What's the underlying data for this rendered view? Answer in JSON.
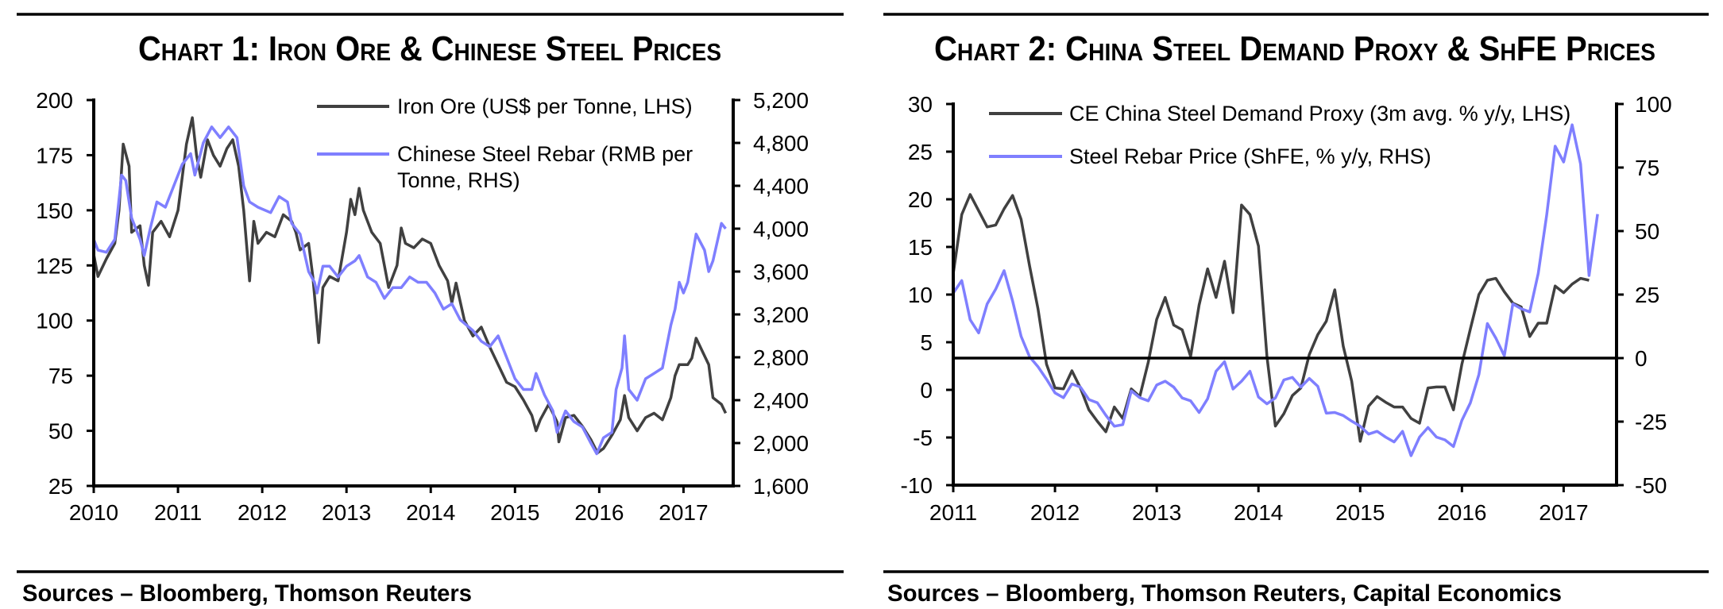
{
  "chart_data": [
    {
      "type": "line",
      "title": "Chart 1: Iron Ore & Chinese Steel Prices",
      "source": "Sources – Bloomberg, Thomson Reuters",
      "xlim": [
        2010,
        2017.59
      ],
      "x_ticks": [
        2010,
        2011,
        2012,
        2013,
        2014,
        2015,
        2016,
        2017
      ],
      "x_tick_labels": [
        "2010",
        "2011",
        "2012",
        "2013",
        "2014",
        "2015",
        "2016",
        "2017"
      ],
      "y_left": {
        "lim": [
          25,
          200
        ],
        "ticks": [
          25,
          50,
          75,
          100,
          125,
          150,
          175,
          200
        ],
        "labels": [
          "25",
          "50",
          "75",
          "100",
          "125",
          "150",
          "175",
          "200"
        ]
      },
      "y_right": {
        "lim": [
          1600,
          5200
        ],
        "ticks": [
          1600,
          2000,
          2400,
          2800,
          3200,
          3600,
          4000,
          4400,
          4800,
          5200
        ],
        "labels": [
          "1,600",
          "2,000",
          "2,400",
          "2,800",
          "3,200",
          "3,600",
          "4,000",
          "4,400",
          "4,800",
          "5,200"
        ]
      },
      "grid": false,
      "legend_position": "top-right",
      "series": [
        {
          "name": "Iron Ore (US$ per Tonne, LHS)",
          "axis": "left",
          "color": "#404040",
          "points": [
            [
              2010.0,
              130
            ],
            [
              2010.05,
              120
            ],
            [
              2010.15,
              128
            ],
            [
              2010.25,
              135
            ],
            [
              2010.3,
              150
            ],
            [
              2010.35,
              180
            ],
            [
              2010.42,
              170
            ],
            [
              2010.45,
              140
            ],
            [
              2010.55,
              143
            ],
            [
              2010.6,
              125
            ],
            [
              2010.65,
              116
            ],
            [
              2010.7,
              140
            ],
            [
              2010.8,
              145
            ],
            [
              2010.9,
              138
            ],
            [
              2011.0,
              150
            ],
            [
              2011.05,
              165
            ],
            [
              2011.1,
              180
            ],
            [
              2011.17,
              192
            ],
            [
              2011.22,
              175
            ],
            [
              2011.27,
              165
            ],
            [
              2011.35,
              182
            ],
            [
              2011.42,
              175
            ],
            [
              2011.5,
              170
            ],
            [
              2011.58,
              178
            ],
            [
              2011.65,
              182
            ],
            [
              2011.72,
              170
            ],
            [
              2011.78,
              150
            ],
            [
              2011.85,
              118
            ],
            [
              2011.9,
              145
            ],
            [
              2011.95,
              135
            ],
            [
              2012.05,
              140
            ],
            [
              2012.15,
              138
            ],
            [
              2012.25,
              148
            ],
            [
              2012.35,
              145
            ],
            [
              2012.4,
              140
            ],
            [
              2012.45,
              132
            ],
            [
              2012.55,
              135
            ],
            [
              2012.6,
              120
            ],
            [
              2012.67,
              90
            ],
            [
              2012.72,
              115
            ],
            [
              2012.8,
              120
            ],
            [
              2012.9,
              118
            ],
            [
              2013.0,
              140
            ],
            [
              2013.05,
              155
            ],
            [
              2013.1,
              148
            ],
            [
              2013.15,
              160
            ],
            [
              2013.2,
              150
            ],
            [
              2013.3,
              140
            ],
            [
              2013.4,
              135
            ],
            [
              2013.5,
              115
            ],
            [
              2013.6,
              125
            ],
            [
              2013.65,
              142
            ],
            [
              2013.7,
              135
            ],
            [
              2013.8,
              133
            ],
            [
              2013.9,
              137
            ],
            [
              2014.0,
              135
            ],
            [
              2014.1,
              125
            ],
            [
              2014.2,
              118
            ],
            [
              2014.25,
              108
            ],
            [
              2014.3,
              117
            ],
            [
              2014.4,
              100
            ],
            [
              2014.5,
              93
            ],
            [
              2014.6,
              97
            ],
            [
              2014.7,
              88
            ],
            [
              2014.8,
              80
            ],
            [
              2014.9,
              72
            ],
            [
              2015.0,
              70
            ],
            [
              2015.1,
              64
            ],
            [
              2015.2,
              57
            ],
            [
              2015.25,
              50
            ],
            [
              2015.3,
              55
            ],
            [
              2015.4,
              62
            ],
            [
              2015.5,
              54
            ],
            [
              2015.52,
              45
            ],
            [
              2015.6,
              56
            ],
            [
              2015.7,
              57
            ],
            [
              2015.8,
              52
            ],
            [
              2015.9,
              46
            ],
            [
              2015.98,
              40
            ],
            [
              2016.05,
              42
            ],
            [
              2016.15,
              48
            ],
            [
              2016.25,
              55
            ],
            [
              2016.3,
              66
            ],
            [
              2016.35,
              56
            ],
            [
              2016.45,
              50
            ],
            [
              2016.55,
              56
            ],
            [
              2016.65,
              58
            ],
            [
              2016.75,
              55
            ],
            [
              2016.85,
              65
            ],
            [
              2016.9,
              75
            ],
            [
              2016.95,
              80
            ],
            [
              2017.05,
              80
            ],
            [
              2017.1,
              83
            ],
            [
              2017.15,
              92
            ],
            [
              2017.2,
              88
            ],
            [
              2017.3,
              80
            ],
            [
              2017.35,
              65
            ],
            [
              2017.45,
              62
            ],
            [
              2017.5,
              58
            ]
          ]
        },
        {
          "name": "Chinese Steel Rebar (RMB per Tonne, RHS)",
          "legend_lines": [
            "Chinese Steel Rebar (RMB per",
            "Tonne, RHS)"
          ],
          "axis": "right",
          "color": "#7f7fff",
          "points": [
            [
              2010.0,
              3900
            ],
            [
              2010.05,
              3800
            ],
            [
              2010.15,
              3780
            ],
            [
              2010.25,
              3900
            ],
            [
              2010.33,
              4500
            ],
            [
              2010.38,
              4450
            ],
            [
              2010.45,
              4100
            ],
            [
              2010.55,
              3900
            ],
            [
              2010.6,
              3750
            ],
            [
              2010.67,
              4000
            ],
            [
              2010.75,
              4250
            ],
            [
              2010.85,
              4200
            ],
            [
              2010.95,
              4400
            ],
            [
              2011.05,
              4600
            ],
            [
              2011.15,
              4700
            ],
            [
              2011.2,
              4500
            ],
            [
              2011.3,
              4800
            ],
            [
              2011.4,
              4950
            ],
            [
              2011.5,
              4850
            ],
            [
              2011.6,
              4950
            ],
            [
              2011.7,
              4850
            ],
            [
              2011.78,
              4400
            ],
            [
              2011.85,
              4250
            ],
            [
              2011.95,
              4200
            ],
            [
              2012.1,
              4150
            ],
            [
              2012.2,
              4300
            ],
            [
              2012.3,
              4250
            ],
            [
              2012.35,
              4050
            ],
            [
              2012.45,
              3950
            ],
            [
              2012.55,
              3600
            ],
            [
              2012.62,
              3500
            ],
            [
              2012.65,
              3400
            ],
            [
              2012.72,
              3650
            ],
            [
              2012.8,
              3650
            ],
            [
              2012.9,
              3550
            ],
            [
              2013.0,
              3650
            ],
            [
              2013.1,
              3700
            ],
            [
              2013.15,
              3750
            ],
            [
              2013.25,
              3550
            ],
            [
              2013.35,
              3500
            ],
            [
              2013.45,
              3350
            ],
            [
              2013.55,
              3450
            ],
            [
              2013.65,
              3450
            ],
            [
              2013.75,
              3550
            ],
            [
              2013.85,
              3500
            ],
            [
              2013.95,
              3500
            ],
            [
              2014.05,
              3400
            ],
            [
              2014.15,
              3250
            ],
            [
              2014.25,
              3300
            ],
            [
              2014.35,
              3150
            ],
            [
              2014.5,
              3050
            ],
            [
              2014.6,
              2950
            ],
            [
              2014.7,
              2900
            ],
            [
              2014.8,
              3000
            ],
            [
              2014.9,
              2800
            ],
            [
              2015.0,
              2600
            ],
            [
              2015.1,
              2500
            ],
            [
              2015.2,
              2500
            ],
            [
              2015.25,
              2650
            ],
            [
              2015.35,
              2450
            ],
            [
              2015.45,
              2300
            ],
            [
              2015.5,
              2100
            ],
            [
              2015.6,
              2300
            ],
            [
              2015.7,
              2200
            ],
            [
              2015.8,
              2150
            ],
            [
              2015.9,
              2000
            ],
            [
              2015.97,
              1900
            ],
            [
              2016.05,
              2050
            ],
            [
              2016.15,
              2100
            ],
            [
              2016.2,
              2500
            ],
            [
              2016.27,
              2700
            ],
            [
              2016.3,
              3000
            ],
            [
              2016.35,
              2500
            ],
            [
              2016.45,
              2400
            ],
            [
              2016.55,
              2600
            ],
            [
              2016.65,
              2650
            ],
            [
              2016.75,
              2700
            ],
            [
              2016.85,
              3100
            ],
            [
              2016.9,
              3250
            ],
            [
              2016.95,
              3500
            ],
            [
              2017.0,
              3400
            ],
            [
              2017.05,
              3500
            ],
            [
              2017.15,
              3950
            ],
            [
              2017.25,
              3800
            ],
            [
              2017.3,
              3600
            ],
            [
              2017.35,
              3700
            ],
            [
              2017.45,
              4050
            ],
            [
              2017.5,
              4000
            ]
          ]
        }
      ]
    },
    {
      "type": "line",
      "title": "Chart 2: China Steel Demand Proxy & ShFE Prices",
      "source": "Sources – Bloomberg, Thomson Reuters, Capital Economics",
      "xlim": [
        2011,
        2017.52
      ],
      "x_ticks": [
        2011,
        2012,
        2013,
        2014,
        2015,
        2016,
        2017
      ],
      "x_tick_labels": [
        "2011",
        "2012",
        "2013",
        "2014",
        "2015",
        "2016",
        "2017"
      ],
      "y_left": {
        "lim": [
          -10,
          30
        ],
        "ticks": [
          -10,
          -5,
          0,
          5,
          10,
          15,
          20,
          25,
          30
        ],
        "labels": [
          "-10",
          "-5",
          "0",
          "5",
          "10",
          "15",
          "20",
          "25",
          "30"
        ]
      },
      "y_right": {
        "lim": [
          -50,
          100
        ],
        "ticks": [
          -50,
          -25,
          0,
          25,
          50,
          75,
          100
        ],
        "labels": [
          "-50",
          "-25",
          "0",
          "25",
          "50",
          "75",
          "100"
        ]
      },
      "reference_line": {
        "axis": "right",
        "value": 0
      },
      "grid": false,
      "legend_position": "top",
      "x_start": 2011,
      "x_step_per_point": 0.0833333,
      "series": [
        {
          "name": "CE China Steel Demand Proxy (3m avg. % y/y, LHS)",
          "axis": "left",
          "color": "#404040",
          "values": [
            12.2,
            18.4,
            20.5,
            18.8,
            17.1,
            17.3,
            19.0,
            20.4,
            17.9,
            13.0,
            8.5,
            2.7,
            0.2,
            0.1,
            2.0,
            0.2,
            -2.1,
            -3.3,
            -4.4,
            -1.8,
            -3.0,
            0.1,
            -0.7,
            2.9,
            7.4,
            9.7,
            6.8,
            6.3,
            3.5,
            8.9,
            12.7,
            9.7,
            13.5,
            8.1,
            19.4,
            18.4,
            15.1,
            3.5,
            -3.8,
            -2.5,
            -0.6,
            0.2,
            3.7,
            5.8,
            7.2,
            10.5,
            4.6,
            0.9,
            -5.4,
            -1.7,
            -0.7,
            -1.3,
            -1.8,
            -1.8,
            -3.0,
            -3.5,
            0.2,
            0.3,
            0.3,
            -2.1,
            2.7,
            6.4,
            10.0,
            11.5,
            11.7,
            10.3,
            9.1,
            8.7,
            5.6,
            7.0,
            7.0,
            10.9,
            10.2,
            11.1,
            11.7,
            11.5
          ]
        },
        {
          "name": "Steel Rebar Price (ShFE, % y/y, RHS)",
          "axis": "right",
          "color": "#7f7fff",
          "values": [
            25.6,
            30.5,
            15.1,
            9.9,
            21.3,
            27.1,
            34.4,
            22.5,
            8.6,
            0.5,
            -3.4,
            -8.3,
            -13.7,
            -15.6,
            -10.2,
            -11.4,
            -16.3,
            -17.6,
            -22.5,
            -26.8,
            -26.2,
            -12.9,
            -15.6,
            -16.8,
            -10.6,
            -9.1,
            -11.4,
            -15.7,
            -16.8,
            -21.4,
            -16.0,
            -5.2,
            -1.4,
            -12.2,
            -9.1,
            -5.2,
            -15.3,
            -18.0,
            -15.7,
            -8.6,
            -7.6,
            -11.4,
            -8.0,
            -11.1,
            -21.7,
            -21.4,
            -22.6,
            -24.8,
            -26.8,
            -29.9,
            -28.8,
            -31.1,
            -33.0,
            -28.8,
            -38.4,
            -31.1,
            -27.3,
            -31.1,
            -32.2,
            -34.8,
            -24.5,
            -17.6,
            -6.5,
            13.6,
            7.9,
            0.9,
            21.3,
            19.4,
            18.2,
            33.3,
            56.4,
            83.4,
            77.2,
            91.8,
            76.4,
            32.5,
            56.7
          ]
        }
      ]
    }
  ]
}
